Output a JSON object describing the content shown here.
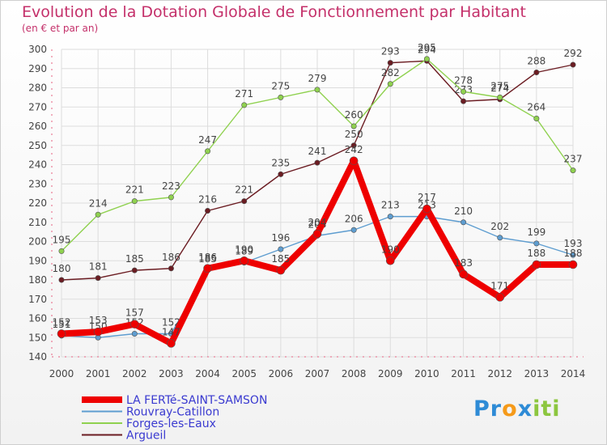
{
  "chart_data": {
    "type": "line",
    "title": "Evolution de la Dotation Globale de Fonctionnement par Habitant",
    "subtitle": "(en € et par an)",
    "xlabel": "",
    "ylabel": "",
    "ylim": [
      140,
      300
    ],
    "ytick_step": 10,
    "grid": true,
    "x": [
      "2000",
      "2001",
      "2002",
      "2003",
      "2004",
      "2005",
      "2006",
      "2007",
      "2008",
      "2009",
      "2010",
      "2011",
      "2012",
      "2013",
      "2014"
    ],
    "series": [
      {
        "name": "LA FERTé-SAINT-SAMSON",
        "color": "#ee0000",
        "values": [
          152,
          153,
          157,
          147,
          186,
          190,
          185,
          204,
          242,
          190,
          217,
          183,
          171,
          188,
          188
        ]
      },
      {
        "name": "Rouvray-Catillon",
        "color": "#5e9dd0",
        "values": [
          151,
          150,
          152,
          152,
          185,
          189,
          196,
          203,
          206,
          213,
          213,
          210,
          202,
          199,
          193
        ]
      },
      {
        "name": "Forges-les-Eaux",
        "color": "#8fd14f",
        "values": [
          195,
          214,
          221,
          223,
          247,
          271,
          275,
          279,
          260,
          282,
          295,
          278,
          275,
          264,
          237
        ]
      },
      {
        "name": "Argueil",
        "color": "#6b1c22",
        "values": [
          180,
          181,
          185,
          186,
          216,
          221,
          235,
          241,
          250,
          293,
          294,
          273,
          274,
          288,
          292
        ]
      }
    ],
    "legend_position": "bottom-left"
  },
  "brand": {
    "letters": [
      {
        "ch": "P",
        "color": "#2e8bd6"
      },
      {
        "ch": "r",
        "color": "#2e8bd6"
      },
      {
        "ch": "o",
        "color": "#f59a1a"
      },
      {
        "ch": "x",
        "color": "#2e8bd6"
      },
      {
        "ch": "i",
        "color": "#8cc63f"
      },
      {
        "ch": "t",
        "color": "#8cc63f"
      },
      {
        "ch": "i",
        "color": "#8cc63f"
      }
    ]
  }
}
